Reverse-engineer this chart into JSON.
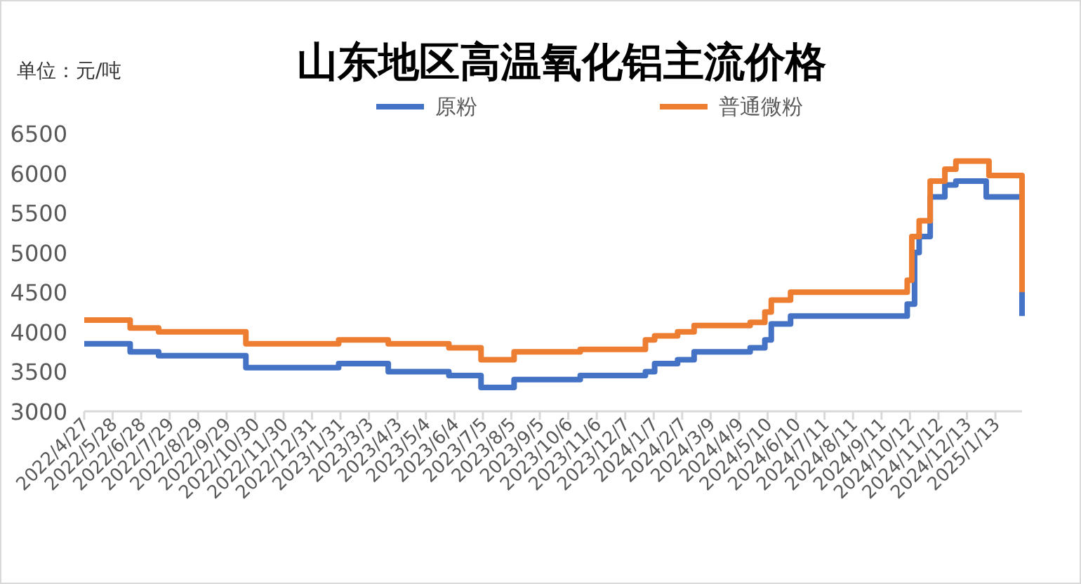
{
  "chart_data": {
    "type": "step",
    "title": "山东地区高温氧化铝主流价格",
    "annotations": [
      "单位：元/吨"
    ],
    "xlim": [
      "2022-04-27",
      "2025-02-11"
    ],
    "xticks": [
      {
        "value": "2022-04-27",
        "label": "2022/4/27"
      },
      {
        "value": "2022-05-28",
        "label": "2022/5/28"
      },
      {
        "value": "2022-06-28",
        "label": "2022/6/28"
      },
      {
        "value": "2022-07-29",
        "label": "2022/7/29"
      },
      {
        "value": "2022-08-29",
        "label": "2022/8/29"
      },
      {
        "value": "2022-09-29",
        "label": "2022/9/29"
      },
      {
        "value": "2022-10-30",
        "label": "2022/10/30"
      },
      {
        "value": "2022-11-30",
        "label": "2022/11/30"
      },
      {
        "value": "2022-12-31",
        "label": "2022/12/31"
      },
      {
        "value": "2023-01-31",
        "label": "2023/1/31"
      },
      {
        "value": "2023-03-03",
        "label": "2023/3/3"
      },
      {
        "value": "2023-04-03",
        "label": "2023/4/3"
      },
      {
        "value": "2023-05-04",
        "label": "2023/5/4"
      },
      {
        "value": "2023-06-04",
        "label": "2023/6/4"
      },
      {
        "value": "2023-07-05",
        "label": "2023/7/5"
      },
      {
        "value": "2023-08-05",
        "label": "2023/8/5"
      },
      {
        "value": "2023-09-05",
        "label": "2023/9/5"
      },
      {
        "value": "2023-10-06",
        "label": "2023/10/6"
      },
      {
        "value": "2023-11-06",
        "label": "2023/11/6"
      },
      {
        "value": "2023-12-07",
        "label": "2023/12/7"
      },
      {
        "value": "2024-01-07",
        "label": "2024/1/7"
      },
      {
        "value": "2024-02-07",
        "label": "2024/2/7"
      },
      {
        "value": "2024-03-09",
        "label": "2024/3/9"
      },
      {
        "value": "2024-04-09",
        "label": "2024/4/9"
      },
      {
        "value": "2024-05-10",
        "label": "2024/5/10"
      },
      {
        "value": "2024-06-10",
        "label": "2024/6/10"
      },
      {
        "value": "2024-07-11",
        "label": "2024/7/11"
      },
      {
        "value": "2024-08-11",
        "label": "2024/8/11"
      },
      {
        "value": "2024-09-11",
        "label": "2024/9/11"
      },
      {
        "value": "2024-10-12",
        "label": "2024/10/12"
      },
      {
        "value": "2024-11-12",
        "label": "2024/11/12"
      },
      {
        "value": "2024-12-13",
        "label": "2024/12/13"
      },
      {
        "value": "2025-01-13",
        "label": "2025/1/13"
      }
    ],
    "ylim": [
      3000,
      6500
    ],
    "yticks": [
      3000,
      3500,
      4000,
      4500,
      5000,
      5500,
      6000,
      6500
    ],
    "grid": false,
    "legend": "top",
    "series": [
      {
        "name": "原粉",
        "color": "#4472c4",
        "x": [
          "2022-04-27",
          "2022-06-16",
          "2022-07-17",
          "2022-10-20",
          "2023-01-29",
          "2023-03-24",
          "2023-05-29",
          "2023-07-03",
          "2023-08-08",
          "2023-10-19",
          "2023-12-29",
          "2024-01-08",
          "2024-02-02",
          "2024-02-20",
          "2024-04-21",
          "2024-05-07",
          "2024-05-14",
          "2024-06-04",
          "2024-10-09",
          "2024-10-17",
          "2024-10-22",
          "2024-11-03",
          "2024-11-19",
          "2024-12-01",
          "2025-01-03",
          "2025-02-11"
        ],
        "values": [
          3850,
          3750,
          3700,
          3550,
          3600,
          3500,
          3450,
          3300,
          3400,
          3450,
          3500,
          3600,
          3650,
          3750,
          3800,
          3900,
          4100,
          4200,
          4350,
          5000,
          5200,
          5700,
          5850,
          5900,
          5700,
          4200
        ]
      },
      {
        "name": "普通微粉",
        "color": "#ed7d31",
        "x": [
          "2022-04-27",
          "2022-06-16",
          "2022-07-17",
          "2022-10-20",
          "2023-01-29",
          "2023-03-24",
          "2023-05-29",
          "2023-07-03",
          "2023-08-08",
          "2023-10-19",
          "2023-12-29",
          "2024-01-08",
          "2024-02-02",
          "2024-02-20",
          "2024-04-21",
          "2024-05-07",
          "2024-05-14",
          "2024-06-04",
          "2024-10-09",
          "2024-10-14",
          "2024-10-22",
          "2024-11-03",
          "2024-11-19",
          "2024-12-01",
          "2025-01-06",
          "2025-02-11"
        ],
        "values": [
          4150,
          4050,
          4000,
          3850,
          3900,
          3850,
          3800,
          3650,
          3750,
          3780,
          3900,
          3950,
          4000,
          4080,
          4120,
          4250,
          4400,
          4500,
          4650,
          5200,
          5400,
          5900,
          6050,
          6150,
          5970,
          4500
        ]
      }
    ]
  }
}
